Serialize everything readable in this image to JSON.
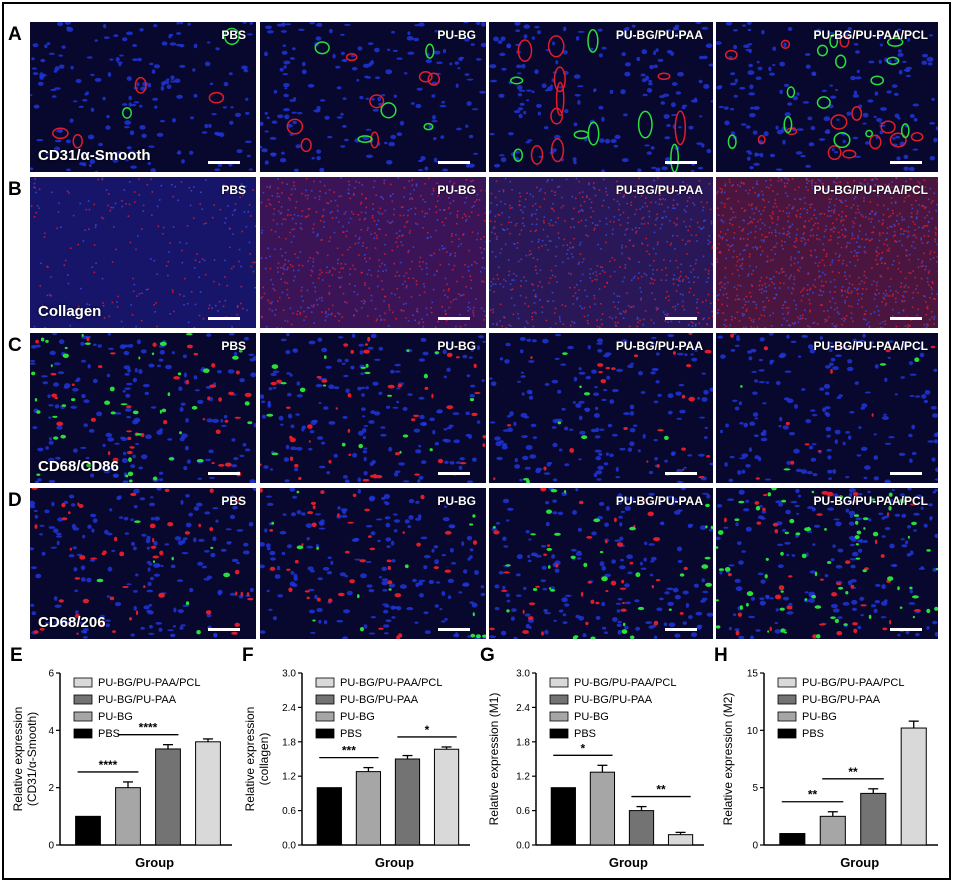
{
  "rows": [
    {
      "letter": "A",
      "stain": "CD31/α-Smooth",
      "tone": "vessel"
    },
    {
      "letter": "B",
      "stain": "Collagen",
      "tone": "collagen"
    },
    {
      "letter": "C",
      "stain": "CD68/CD86",
      "tone": "m1"
    },
    {
      "letter": "D",
      "stain": "CD68/206",
      "tone": "m2"
    }
  ],
  "groups": [
    "PBS",
    "PU-BG",
    "PU-BG/PU-PAA",
    "PU-BG/PU-PAA/PCL"
  ],
  "colors": {
    "nuclei": "#1f35d8",
    "red": "#e11d2a",
    "green": "#27e03a",
    "bar_fills": [
      "#000000",
      "#a6a6a6",
      "#737373",
      "#d9d9d9"
    ]
  },
  "chart_data": [
    {
      "letter": "E",
      "type": "bar",
      "categories": [
        "PBS",
        "PU-BG",
        "PU-BG/PU-PAA",
        "PU-BG/PU-PAA/PCL"
      ],
      "values": [
        1.0,
        2.0,
        3.35,
        3.6
      ],
      "errors": [
        0.0,
        0.2,
        0.15,
        0.1
      ],
      "ylim": [
        0,
        6
      ],
      "yticks": [
        "0",
        "2",
        "4",
        "6"
      ],
      "ylabel": [
        "Relative expression",
        "(CD31/α-Smooth)"
      ],
      "xlabel": "Group",
      "legend": [
        "PU-BG/PU-PAA/PCL",
        "PU-BG/PU-PAA",
        "PU-BG",
        "PBS"
      ],
      "significance": [
        {
          "from": 0,
          "to": 1,
          "label": "****"
        },
        {
          "from": 1,
          "to": 2,
          "label": "****"
        }
      ]
    },
    {
      "letter": "F",
      "type": "bar",
      "categories": [
        "PBS",
        "PU-BG",
        "PU-BG/PU-PAA",
        "PU-BG/PU-PAA/PCL"
      ],
      "values": [
        1.0,
        1.28,
        1.5,
        1.67
      ],
      "errors": [
        0.0,
        0.07,
        0.06,
        0.04
      ],
      "ylim": [
        0,
        3
      ],
      "yticks": [
        "0.0",
        "0.6",
        "1.2",
        "1.8",
        "2.4",
        "3.0"
      ],
      "ylabel": [
        "Relative expression",
        "(collagen)"
      ],
      "xlabel": "Group",
      "legend": [
        "PU-BG/PU-PAA/PCL",
        "PU-BG/PU-PAA",
        "PU-BG",
        "PBS"
      ],
      "significance": [
        {
          "from": 0,
          "to": 1,
          "label": "***"
        },
        {
          "from": 2,
          "to": 3,
          "label": "*"
        }
      ]
    },
    {
      "letter": "G",
      "type": "bar",
      "categories": [
        "PBS",
        "PU-BG",
        "PU-BG/PU-PAA",
        "PU-BG/PU-PAA/PCL"
      ],
      "values": [
        1.0,
        1.27,
        0.6,
        0.18
      ],
      "errors": [
        0.0,
        0.12,
        0.07,
        0.04
      ],
      "ylim": [
        0,
        3
      ],
      "yticks": [
        "0.0",
        "0.6",
        "1.2",
        "1.8",
        "2.4",
        "3.0"
      ],
      "ylabel": [
        "Relative expression (M1)"
      ],
      "xlabel": "Group",
      "legend": [
        "PU-BG/PU-PAA/PCL",
        "PU-BG/PU-PAA",
        "PU-BG",
        "PBS"
      ],
      "significance": [
        {
          "from": 0,
          "to": 1,
          "label": "*"
        },
        {
          "from": 2,
          "to": 3,
          "label": "**"
        }
      ]
    },
    {
      "letter": "H",
      "type": "bar",
      "categories": [
        "PBS",
        "PU-BG",
        "PU-BG/PU-PAA",
        "PU-BG/PU-PAA/PCL"
      ],
      "values": [
        1.0,
        2.5,
        4.5,
        10.2
      ],
      "errors": [
        0.0,
        0.4,
        0.4,
        0.6
      ],
      "ylim": [
        0,
        15
      ],
      "yticks": [
        "0",
        "5",
        "10",
        "15"
      ],
      "ylabel": [
        "Relative expression (M2)"
      ],
      "xlabel": "Group",
      "legend": [
        "PU-BG/PU-PAA/PCL",
        "PU-BG/PU-PAA",
        "PU-BG",
        "PBS"
      ],
      "significance": [
        {
          "from": 0,
          "to": 1,
          "label": "**"
        },
        {
          "from": 1,
          "to": 2,
          "label": "**"
        }
      ]
    }
  ]
}
